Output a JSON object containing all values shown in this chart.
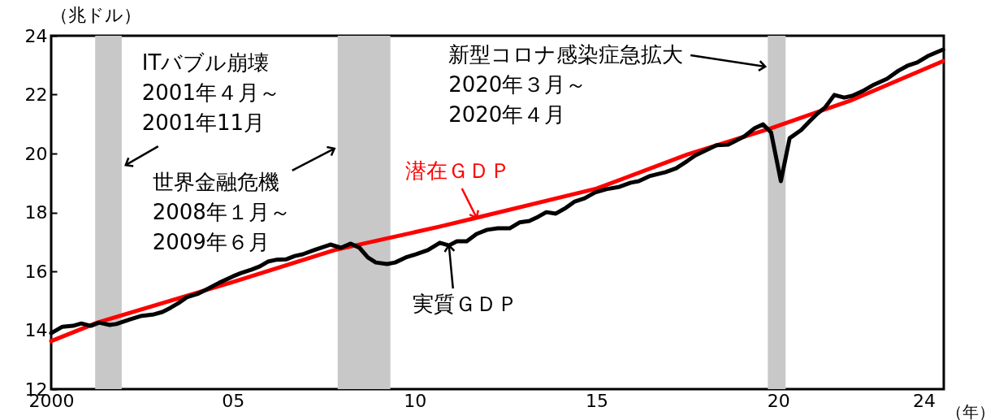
{
  "chart_data": {
    "type": "line",
    "xlabel": "（年）",
    "ylabel": "（兆ドル）",
    "xlim": [
      2000,
      2024.55
    ],
    "ylim": [
      12,
      24
    ],
    "xticks": [
      2000,
      {
        "value": 2005,
        "label": "05"
      },
      {
        "value": 2010,
        "label": "10"
      },
      {
        "value": 2015,
        "label": "15"
      },
      {
        "value": 2020,
        "label": "20"
      },
      {
        "value": 2024,
        "label": "24"
      }
    ],
    "yticks": [
      12,
      14,
      16,
      18,
      20,
      22,
      24
    ],
    "grid": false,
    "marker": "none",
    "line_style": "solid",
    "bands": [
      {
        "axis": "x",
        "from": 2001.21,
        "to": 2001.94,
        "color": "#c8c8c8"
      },
      {
        "axis": "x",
        "from": 2007.88,
        "to": 2009.33,
        "color": "#c8c8c8"
      },
      {
        "axis": "x",
        "from": 2019.71,
        "to": 2020.2,
        "color": "#c8c8c8"
      }
    ],
    "annotations": [
      {
        "text": "ITバブル崩壊\n2001年４月～\n2001年11月",
        "x": 2002.05,
        "y": 19.61
      },
      {
        "text": "世界金融危機\n2008年１月～\n2009年６月",
        "x": 2007.79,
        "y": 20.17
      },
      {
        "text": "新型コロナ感染症急拡大\n2020年３月～\n2020年４月",
        "x": 2019.64,
        "y": 22.95
      }
    ],
    "series": [
      {
        "name": "潜在ＧＤＰ",
        "color": "#ff0000",
        "x": [
          2000,
          2001.27,
          2005,
          2007.79,
          2010.69,
          2011.7,
          2015,
          2017.5,
          2019.8,
          2022.03,
          2024.53
        ],
        "values": [
          13.63,
          14.26,
          15.64,
          16.72,
          17.52,
          17.82,
          18.81,
          19.97,
          20.86,
          21.82,
          23.14
        ]
      },
      {
        "name": "実質ＧＤＰ",
        "color": "#000000",
        "x": [
          2000,
          2000.31,
          2000.6,
          2000.83,
          2001.09,
          2001.32,
          2001.61,
          2001.79,
          2002.17,
          2002.46,
          2002.83,
          2003.06,
          2003.28,
          2003.5,
          2003.73,
          2004.02,
          2004.33,
          2004.62,
          2005,
          2005.22,
          2005.51,
          2005.74,
          2005.96,
          2006.18,
          2006.47,
          2006.7,
          2006.92,
          2007.23,
          2007.68,
          2007.97,
          2008.24,
          2008.48,
          2008.71,
          2008.93,
          2009.24,
          2009.46,
          2009.75,
          2010.04,
          2010.36,
          2010.69,
          2010.94,
          2011.16,
          2011.43,
          2011.7,
          2011.99,
          2012.28,
          2012.61,
          2012.88,
          2013.15,
          2013.39,
          2013.62,
          2013.88,
          2014.15,
          2014.4,
          2014.67,
          2014.96,
          2015.27,
          2015.63,
          2015.94,
          2016.16,
          2016.45,
          2016.9,
          2017.19,
          2017.5,
          2017.72,
          2018.01,
          2018.3,
          2018.62,
          2019.06,
          2019.35,
          2019.58,
          2019.8,
          2020.07,
          2020.31,
          2020.63,
          2020.85,
          2021.07,
          2021.29,
          2021.54,
          2021.81,
          2022.03,
          2022.32,
          2022.63,
          2022.99,
          2023.3,
          2023.55,
          2023.82,
          2024.11,
          2024.53
        ],
        "values": [
          13.9,
          14.12,
          14.15,
          14.23,
          14.15,
          14.26,
          14.18,
          14.21,
          14.37,
          14.48,
          14.54,
          14.62,
          14.76,
          14.92,
          15.12,
          15.23,
          15.42,
          15.61,
          15.83,
          15.94,
          16.06,
          16.17,
          16.33,
          16.39,
          16.41,
          16.52,
          16.58,
          16.72,
          16.91,
          16.8,
          16.94,
          16.8,
          16.47,
          16.3,
          16.25,
          16.3,
          16.47,
          16.58,
          16.72,
          16.97,
          16.88,
          17.02,
          17.02,
          17.27,
          17.41,
          17.46,
          17.46,
          17.66,
          17.71,
          17.85,
          18.01,
          17.96,
          18.15,
          18.37,
          18.48,
          18.68,
          18.79,
          18.87,
          19.01,
          19.06,
          19.23,
          19.37,
          19.5,
          19.75,
          19.94,
          20.11,
          20.28,
          20.3,
          20.58,
          20.86,
          20.99,
          20.72,
          19.06,
          20.52,
          20.8,
          21.08,
          21.35,
          21.57,
          21.99,
          21.9,
          21.96,
          22.12,
          22.34,
          22.54,
          22.81,
          22.98,
          23.09,
          23.31,
          23.53
        ]
      }
    ]
  }
}
